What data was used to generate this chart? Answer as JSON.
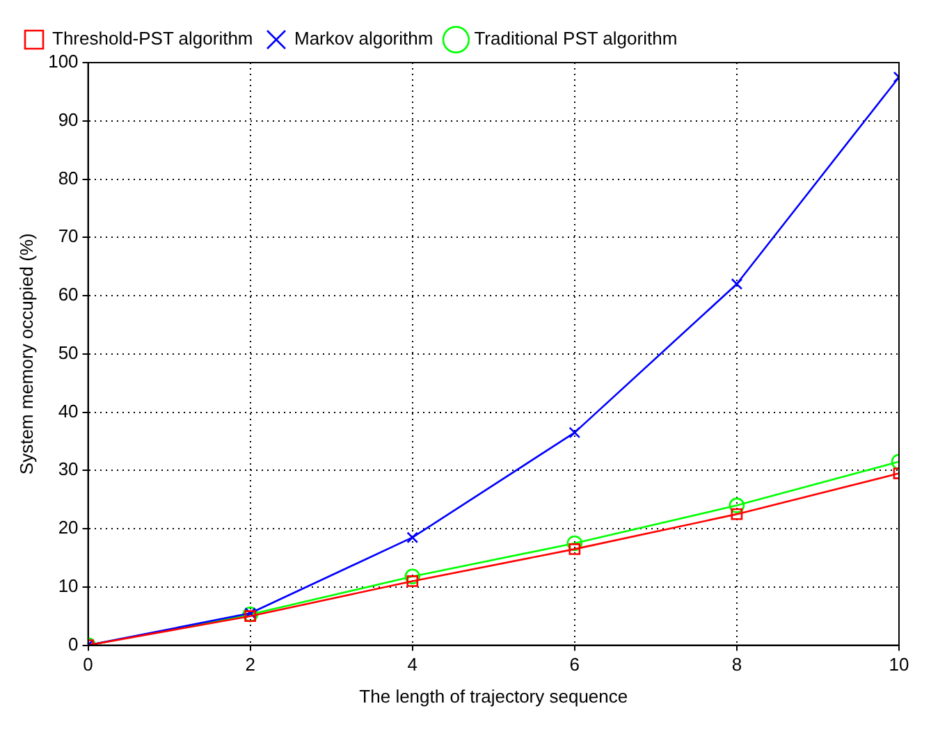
{
  "chart_data": {
    "type": "line",
    "xlabel": "The length of trajectory sequence",
    "ylabel": "System memory occupied (%)",
    "x": [
      0,
      2,
      4,
      6,
      8,
      10
    ],
    "series": [
      {
        "name": "Threshold-PST algorithm",
        "color": "#ff0000",
        "marker": "square",
        "values": [
          0,
          5,
          11,
          16.5,
          22.5,
          29.5
        ]
      },
      {
        "name": "Markov algorithm",
        "color": "#0000ff",
        "marker": "cross",
        "values": [
          0,
          5.5,
          18.5,
          36.5,
          62,
          97.5
        ]
      },
      {
        "name": "Traditional PST algorithm",
        "color": "#00ff00",
        "marker": "circle",
        "values": [
          0,
          5.3,
          11.8,
          17.5,
          24,
          31.5
        ]
      }
    ],
    "xlim": [
      0,
      10
    ],
    "xticks": [
      0,
      2,
      4,
      6,
      8,
      10
    ],
    "ylim": [
      0,
      100
    ],
    "yticks": [
      0,
      10,
      20,
      30,
      40,
      50,
      60,
      70,
      80,
      90,
      100
    ],
    "grid": true,
    "legend": "top left",
    "line_style": "solid"
  }
}
